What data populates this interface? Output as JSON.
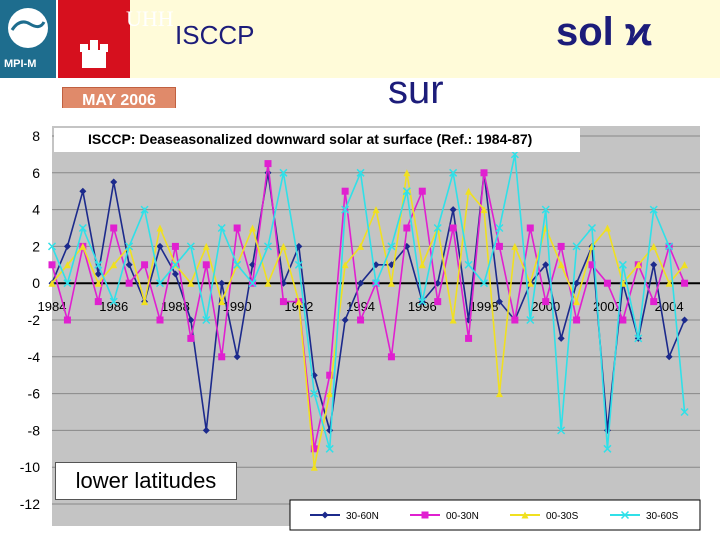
{
  "header": {
    "mpi_label": "MPI-M",
    "uhh_label": "UHH",
    "title_left": "ISCCP",
    "title_right": "sol ϰ",
    "title_fragment": "sur",
    "date_badge": "MAY 2006"
  },
  "annotation": "lower latitudes",
  "colors": {
    "navy": "#1c1c7a",
    "series_30_60N": "#1c2a8c",
    "series_00_30N": "#e020d0",
    "series_00_30S": "#f0e020",
    "series_30_60S": "#30e0e8"
  },
  "chart_data": {
    "type": "line",
    "title": "ISCCP: Deaseasonalized downward solar at surface (Ref.: 1984-87)",
    "xlabel": "",
    "ylabel": "",
    "xlim": [
      1984,
      2005
    ],
    "ylim": [
      -12,
      8
    ],
    "yticks": [
      8,
      6,
      4,
      2,
      0,
      -2,
      -4,
      -6,
      -8,
      -10,
      -12
    ],
    "xtick_labels": [
      "1984",
      "1986",
      "1988",
      "1990",
      "1992",
      "1994",
      "1996",
      "1998",
      "2000",
      "2002",
      "2004"
    ],
    "legend_position": "bottom",
    "grid": true,
    "x": [
      1984.0,
      1984.5,
      1985.0,
      1985.5,
      1986.0,
      1986.5,
      1987.0,
      1987.5,
      1988.0,
      1988.5,
      1989.0,
      1989.5,
      1990.0,
      1990.5,
      1991.0,
      1991.5,
      1992.0,
      1992.5,
      1993.0,
      1993.5,
      1994.0,
      1994.5,
      1995.0,
      1995.5,
      1996.0,
      1996.5,
      1997.0,
      1997.5,
      1998.0,
      1998.5,
      1999.0,
      1999.5,
      2000.0,
      2000.5,
      2001.0,
      2001.5,
      2002.0,
      2002.5,
      2003.0,
      2003.5,
      2004.0,
      2004.5
    ],
    "series": [
      {
        "name": "30-60N",
        "values": [
          0,
          2,
          5,
          0.5,
          5.5,
          1,
          -1,
          2,
          0.5,
          -2,
          -8,
          0,
          -4,
          1,
          6,
          0,
          2,
          -5,
          -8,
          -2,
          0,
          1,
          1,
          2,
          -1,
          0,
          4,
          -2,
          6,
          -1,
          -2,
          0,
          1,
          -3,
          0,
          2,
          -8,
          0,
          -3,
          1,
          -4,
          -2
        ]
      },
      {
        "name": "00-30N",
        "values": [
          1,
          -2,
          2,
          -1,
          3,
          0,
          1,
          -2,
          2,
          -3,
          1,
          -4,
          3,
          0,
          6.5,
          -1,
          -1,
          -9,
          -5,
          5,
          -2,
          0,
          -4,
          3,
          5,
          -1,
          3,
          -3,
          6,
          2,
          -2,
          3,
          -1,
          2,
          -2,
          1,
          0,
          -2,
          1,
          -1,
          2,
          0
        ]
      },
      {
        "name": "00-30S",
        "values": [
          0,
          1,
          2,
          0,
          1,
          2,
          -1,
          3,
          1,
          0,
          2,
          -1,
          1,
          3,
          0,
          2,
          -1,
          -10,
          -6,
          1,
          2,
          4,
          0,
          6,
          1,
          3,
          -2,
          5,
          4,
          -6,
          2,
          0,
          3,
          1,
          -1,
          2,
          3,
          0,
          1,
          2,
          0,
          1
        ]
      },
      {
        "name": "30-60S",
        "values": [
          2,
          0,
          3,
          1,
          -1,
          2,
          4,
          0,
          1,
          2,
          -2,
          3,
          1,
          0,
          2,
          6,
          1,
          -6,
          -9,
          4,
          6,
          0,
          2,
          5,
          -1,
          3,
          6,
          1,
          0,
          3,
          7,
          -2,
          4,
          -8,
          2,
          3,
          -9,
          1,
          -3,
          4,
          2,
          -7
        ]
      }
    ]
  }
}
